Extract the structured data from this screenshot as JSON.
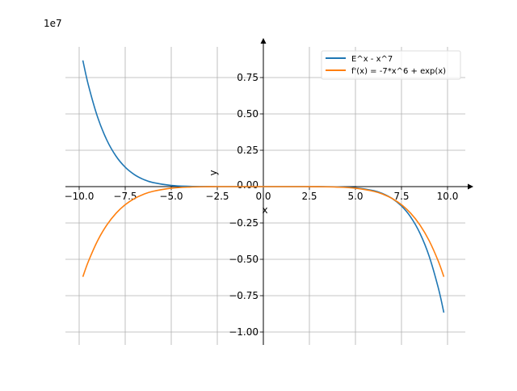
{
  "chart_data": {
    "type": "line",
    "title": "",
    "xlabel": "x",
    "ylabel": "y",
    "y_scale_label": "1e7",
    "xlim": [
      -10.9,
      11.0
    ],
    "ylim": [
      -1.08,
      0.96
    ],
    "grid": true,
    "legend_position": "top-right",
    "x_ticks": [
      -10.0,
      -7.5,
      -5.0,
      -2.5,
      0.0,
      2.5,
      5.0,
      7.5,
      10.0
    ],
    "x_tick_labels": [
      "−10.0",
      "−7.5",
      "−5.0",
      "−2.5",
      "0.0",
      "2.5",
      "5.0",
      "7.5",
      "10.0"
    ],
    "y_ticks": [
      -1.0,
      -0.75,
      -0.5,
      -0.25,
      0.0,
      0.25,
      0.5,
      0.75
    ],
    "y_tick_labels": [
      "−1.00",
      "−0.75",
      "−0.50",
      "−0.25",
      "0.00",
      "0.25",
      "0.50",
      "0.75"
    ],
    "x": [
      -9.8,
      -9.5,
      -9,
      -8.5,
      -8,
      -7.5,
      -7,
      -6.5,
      -6,
      -5,
      -4,
      -3,
      -2,
      -1,
      0,
      1,
      2,
      3,
      4,
      5,
      6,
      6.5,
      7,
      7.5,
      8,
      8.5,
      9,
      9.5,
      9.8
    ],
    "series": [
      {
        "name": "E^x - x^7",
        "color": "#1f77b4",
        "values": [
          0.8681,
          0.6983,
          0.4783,
          0.3206,
          0.2097,
          0.1335,
          0.0824,
          0.049,
          0.028,
          0.0078,
          0.0016,
          0.0002,
          0.0,
          0.0,
          0.0,
          0.0,
          0.0,
          -0.0002,
          -0.0016,
          -0.0078,
          -0.028,
          -0.049,
          -0.0823,
          -0.1333,
          -0.2094,
          -0.3201,
          -0.4775,
          -0.697,
          -0.8663
        ]
      },
      {
        "name": "f'(x) = -7*x^6 + exp(x)",
        "color": "#ff7f0e",
        "values": [
          -0.6201,
          -0.5146,
          -0.372,
          -0.264,
          -0.1835,
          -0.1246,
          -0.0824,
          -0.0528,
          -0.0327,
          -0.0109,
          -0.0029,
          -0.0005,
          0.0,
          0.0,
          0.0,
          0.0,
          0.0,
          -0.0005,
          -0.0029,
          -0.0109,
          -0.0326,
          -0.0527,
          -0.0822,
          -0.1244,
          -0.1832,
          -0.2635,
          -0.3712,
          -0.5132,
          -0.6199
        ]
      }
    ]
  }
}
